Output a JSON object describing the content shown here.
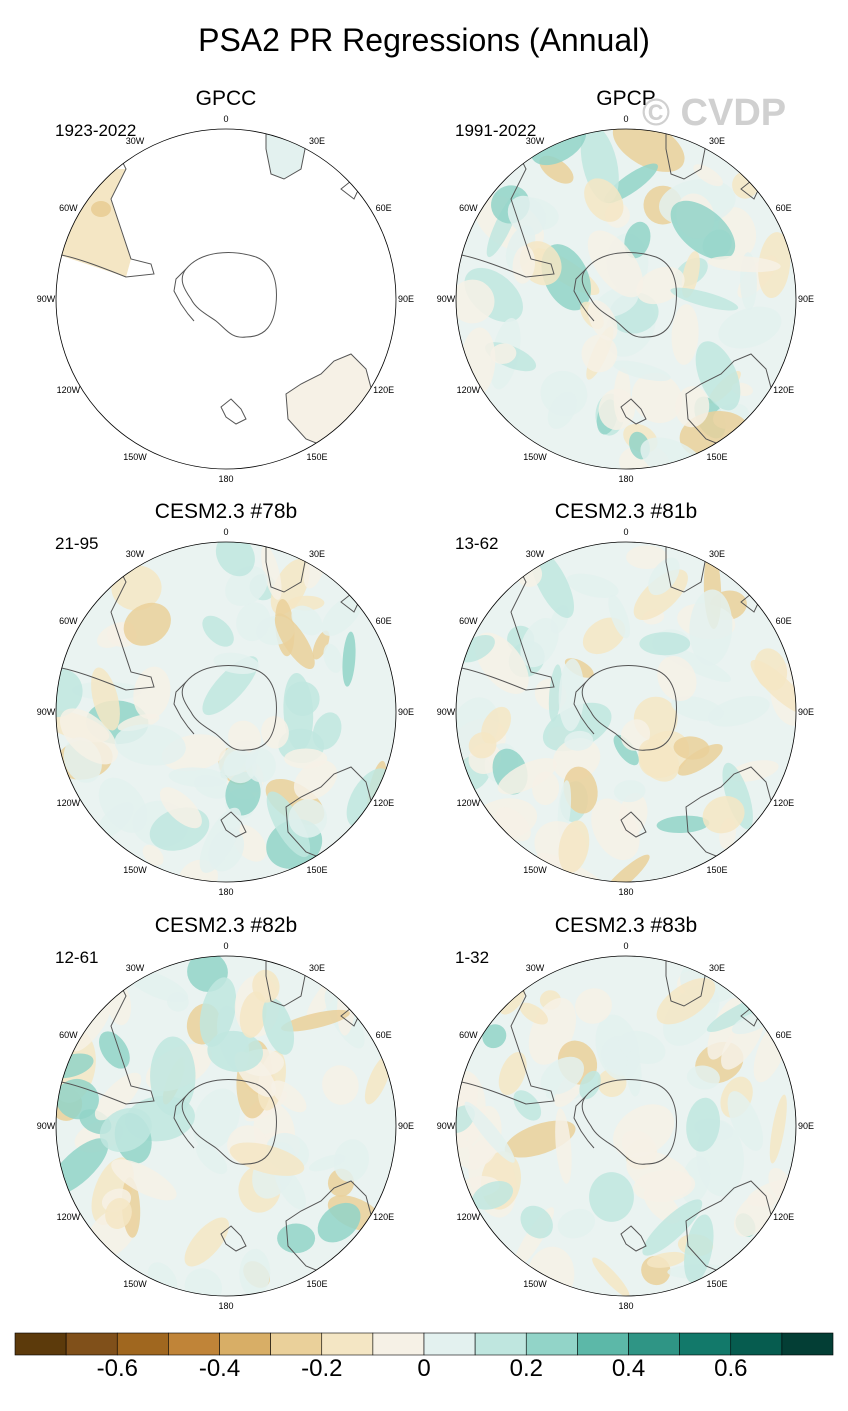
{
  "title": "PSA2 PR Regressions (Annual)",
  "watermark": "© CVDP",
  "lon_labels": [
    "0",
    "30E",
    "60E",
    "90E",
    "120E",
    "150E",
    "180",
    "150W",
    "120W",
    "90W",
    "60W",
    "30W"
  ],
  "panels": [
    {
      "name": "GPCC",
      "period": "1923-2022",
      "coverage": "land-only"
    },
    {
      "name": "GPCP",
      "period": "1991-2022",
      "coverage": "global"
    },
    {
      "name": "CESM2.3 #78b",
      "period": "21-95",
      "coverage": "global"
    },
    {
      "name": "CESM2.3 #81b",
      "period": "13-62",
      "coverage": "global"
    },
    {
      "name": "CESM2.3 #82b",
      "period": "12-61",
      "coverage": "global"
    },
    {
      "name": "CESM2.3 #83b",
      "period": "1-32",
      "coverage": "global"
    }
  ],
  "colorbar": {
    "colors": [
      "#5c3a0b",
      "#80501a",
      "#a0671f",
      "#c08438",
      "#d8ae66",
      "#ead09a",
      "#f4e6c4",
      "#f6f1e6",
      "#e3f1ef",
      "#bfe6df",
      "#92d4c8",
      "#5cb8a8",
      "#2f9585",
      "#12796a",
      "#065c4f",
      "#033e35"
    ],
    "labels": [
      "-0.6",
      "-0.4",
      "-0.2",
      "0",
      "0.2",
      "0.4",
      "0.6"
    ]
  }
}
